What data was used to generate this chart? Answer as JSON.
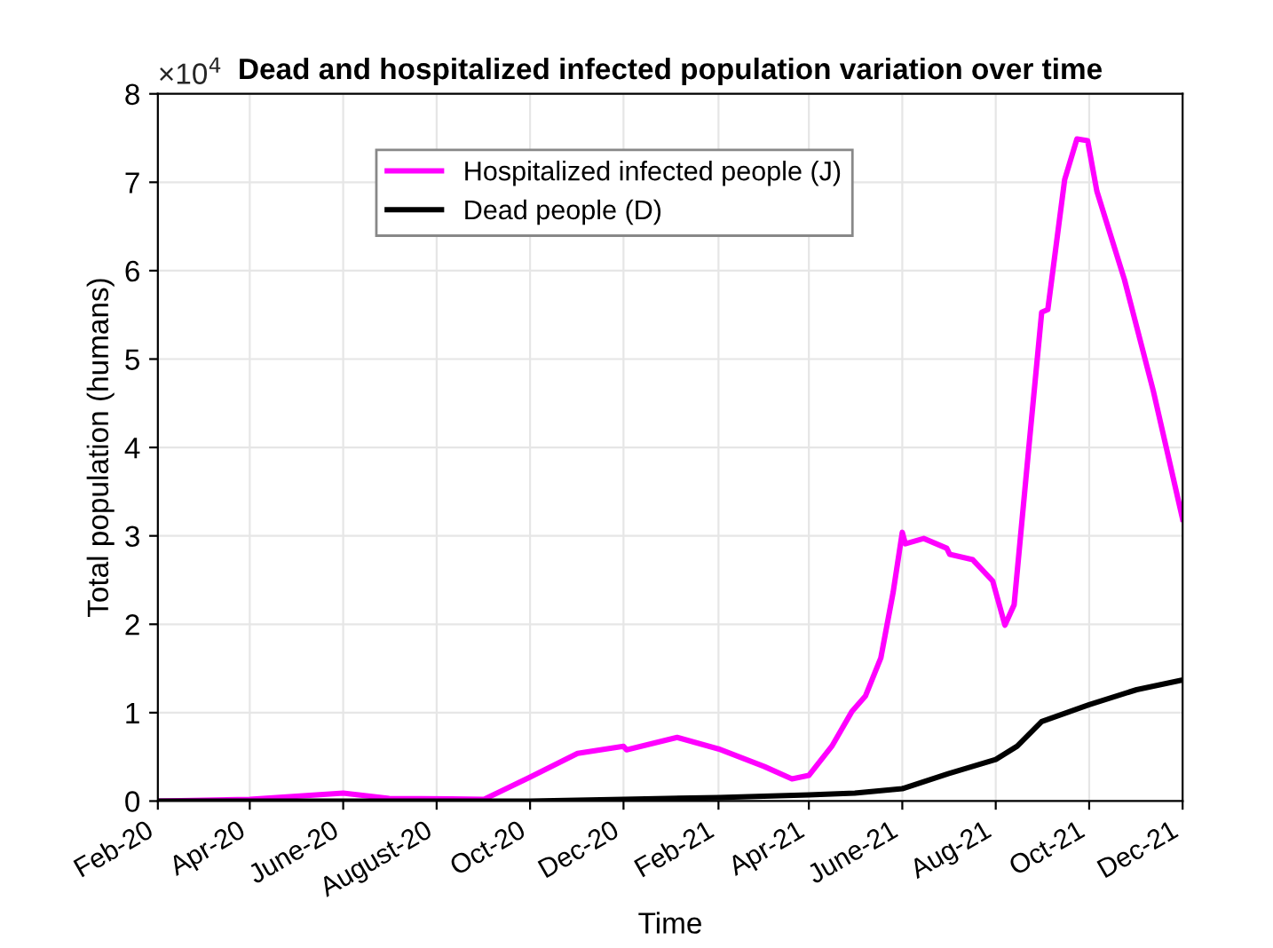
{
  "chart_data": {
    "type": "line",
    "title": "Dead and hospitalized infected population variation over time",
    "xlabel": "Time",
    "ylabel": "Total population (humans)",
    "annotations": [
      "×10$^{4}$"
    ],
    "xlim": [
      "2020-02-01",
      "2021-12-01"
    ],
    "xticks": [
      {
        "value": "2020-02-01",
        "label": "Feb-20"
      },
      {
        "value": "2020-04-01",
        "label": "Apr-20"
      },
      {
        "value": "2020-06-01",
        "label": "June-20"
      },
      {
        "value": "2020-08-01",
        "label": "August-20"
      },
      {
        "value": "2020-10-01",
        "label": "Oct-20"
      },
      {
        "value": "2020-12-01",
        "label": "Dec-20"
      },
      {
        "value": "2021-02-01",
        "label": "Feb-21"
      },
      {
        "value": "2021-04-01",
        "label": "Apr-21"
      },
      {
        "value": "2021-06-01",
        "label": "June-21"
      },
      {
        "value": "2021-08-01",
        "label": "Aug-21"
      },
      {
        "value": "2021-10-01",
        "label": "Oct-21"
      },
      {
        "value": "2021-12-01",
        "label": "Dec-21"
      }
    ],
    "ylim": [
      0,
      8
    ],
    "yticks": [
      0,
      1,
      2,
      3,
      4,
      5,
      6,
      7,
      8
    ],
    "grid": true,
    "legend": "top left",
    "marker": "none",
    "line_style": "solid",
    "series": [
      {
        "name": "Hospitalized infected people (J)",
        "color": "#ff00ff",
        "x": [
          "2020-02-01",
          "2020-04-01",
          "2020-06-01",
          "2020-07-01",
          "2020-09-01",
          "2020-10-01",
          "2020-11-01",
          "2020-12-01",
          "2020-12-03",
          "2021-01-05",
          "2021-02-01",
          "2021-03-03",
          "2021-03-21",
          "2021-04-01",
          "2021-04-16",
          "2021-04-29",
          "2021-05-08",
          "2021-05-18",
          "2021-05-26",
          "2021-06-01",
          "2021-06-03",
          "2021-06-15",
          "2021-06-30",
          "2021-07-02",
          "2021-07-17",
          "2021-07-30",
          "2021-08-07",
          "2021-08-13",
          "2021-08-22",
          "2021-08-31",
          "2021-09-04",
          "2021-09-15",
          "2021-09-23",
          "2021-09-30",
          "2021-10-06",
          "2021-10-24",
          "2021-11-12",
          "2021-12-01"
        ],
        "values": [
          0,
          0.02,
          0.09,
          0.03,
          0.02,
          0.27,
          0.54,
          0.62,
          0.58,
          0.72,
          0.59,
          0.39,
          0.25,
          0.29,
          0.62,
          1.01,
          1.19,
          1.62,
          2.36,
          3.04,
          2.91,
          2.97,
          2.86,
          2.79,
          2.73,
          2.49,
          1.99,
          2.22,
          3.89,
          5.53,
          5.56,
          7.03,
          7.49,
          7.47,
          6.9,
          5.9,
          4.63,
          3.19
        ]
      },
      {
        "name": "Dead people (D)",
        "color": "#000000",
        "x": [
          "2020-02-01",
          "2020-10-01",
          "2020-12-01",
          "2021-02-01",
          "2021-04-01",
          "2021-05-01",
          "2021-06-01",
          "2021-07-01",
          "2021-08-01",
          "2021-08-15",
          "2021-08-31",
          "2021-10-01",
          "2021-11-01",
          "2021-12-01"
        ],
        "values": [
          0,
          0,
          0.02,
          0.04,
          0.07,
          0.09,
          0.14,
          0.31,
          0.47,
          0.62,
          0.9,
          1.09,
          1.26,
          1.37
        ]
      }
    ]
  }
}
